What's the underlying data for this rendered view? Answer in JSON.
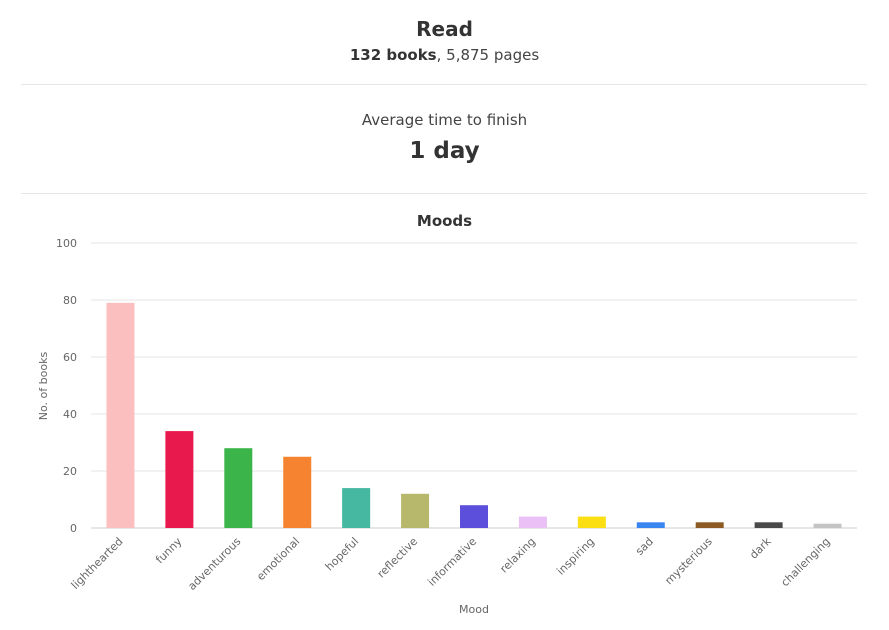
{
  "summary": {
    "read_title": "Read",
    "books_count": "132 books",
    "pages_text": ", 5,875 pages",
    "avg_title": "Average time to finish",
    "avg_value": "1 day"
  },
  "chart_data": {
    "type": "bar",
    "title": "Moods",
    "xlabel": "Mood",
    "ylabel": "No. of books",
    "ylim": [
      0,
      100
    ],
    "yticks": [
      0,
      20,
      40,
      60,
      80,
      100
    ],
    "grid": true,
    "categories": [
      "lighthearted",
      "funny",
      "adventurous",
      "emotional",
      "hopeful",
      "reflective",
      "informative",
      "relaxing",
      "inspiring",
      "sad",
      "mysterious",
      "dark",
      "challenging"
    ],
    "values": [
      79,
      34,
      28,
      25,
      14,
      12,
      8,
      4,
      4,
      2,
      2,
      2,
      1.5
    ],
    "colors": [
      "#fcbfbf",
      "#e8194d",
      "#3bb54a",
      "#f5832f",
      "#46b7a0",
      "#b8b86c",
      "#5b4fdc",
      "#ebc0f6",
      "#fbdf13",
      "#3a86f0",
      "#8d5a24",
      "#4a4a4a",
      "#c4c4c4"
    ]
  }
}
